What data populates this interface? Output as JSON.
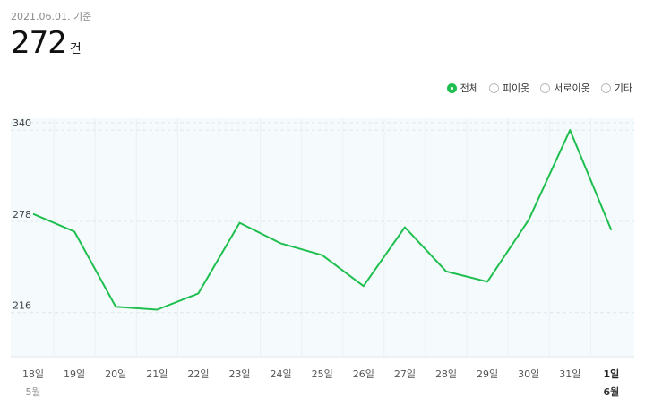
{
  "header": {
    "date": "2021.06.01. 기준",
    "total_value": "272",
    "total_unit": "건"
  },
  "filters": [
    {
      "label": "전체",
      "selected": true
    },
    {
      "label": "피이옷",
      "selected": false
    },
    {
      "label": "서로이옷",
      "selected": false
    },
    {
      "label": "기타",
      "selected": false
    }
  ],
  "colors": {
    "line": "#1fbf4f",
    "plot_bg": "#f5fbfd",
    "grid": "#dde8ef"
  },
  "chart_data": {
    "type": "line",
    "categories": [
      "18일",
      "19일",
      "20일",
      "21일",
      "22일",
      "23일",
      "24일",
      "25일",
      "26일",
      "27일",
      "28일",
      "29일",
      "30일",
      "31일",
      "1일"
    ],
    "months": [
      {
        "label": "5월",
        "index": 0
      },
      {
        "label": "6월",
        "index": 14
      }
    ],
    "highlight_index": 14,
    "series": [
      {
        "values": [
          283,
          271,
          220,
          218,
          229,
          277,
          263,
          255,
          234,
          274,
          244,
          237,
          279,
          340,
          272
        ]
      }
    ],
    "yticks": [
      216,
      278,
      340
    ],
    "ylim": [
      186,
      348
    ],
    "grid": true,
    "title": "",
    "xlabel": "",
    "ylabel": ""
  }
}
